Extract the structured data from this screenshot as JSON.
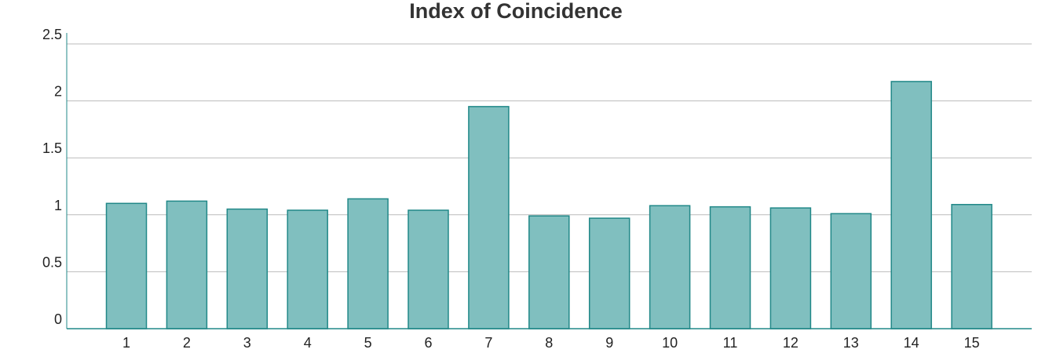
{
  "chart_data": {
    "type": "bar",
    "title": "Index of Coincidence",
    "xlabel": "",
    "ylabel": "",
    "categories": [
      "1",
      "2",
      "3",
      "4",
      "5",
      "6",
      "7",
      "8",
      "9",
      "10",
      "11",
      "12",
      "13",
      "14",
      "15"
    ],
    "values": [
      1.1,
      1.12,
      1.05,
      1.04,
      1.14,
      1.04,
      1.95,
      0.99,
      0.97,
      1.08,
      1.07,
      1.06,
      1.01,
      2.17,
      1.09
    ],
    "ylim": [
      0,
      2.5
    ],
    "yticks": [
      "0",
      "0.5",
      "1",
      "1.5",
      "2",
      "2.5"
    ],
    "grid": true,
    "legend": "none",
    "colors": {
      "bar_fill": "#80bfbf",
      "bar_stroke": "#218888",
      "grid": "#bbbbbb",
      "axis": "#218888"
    }
  }
}
